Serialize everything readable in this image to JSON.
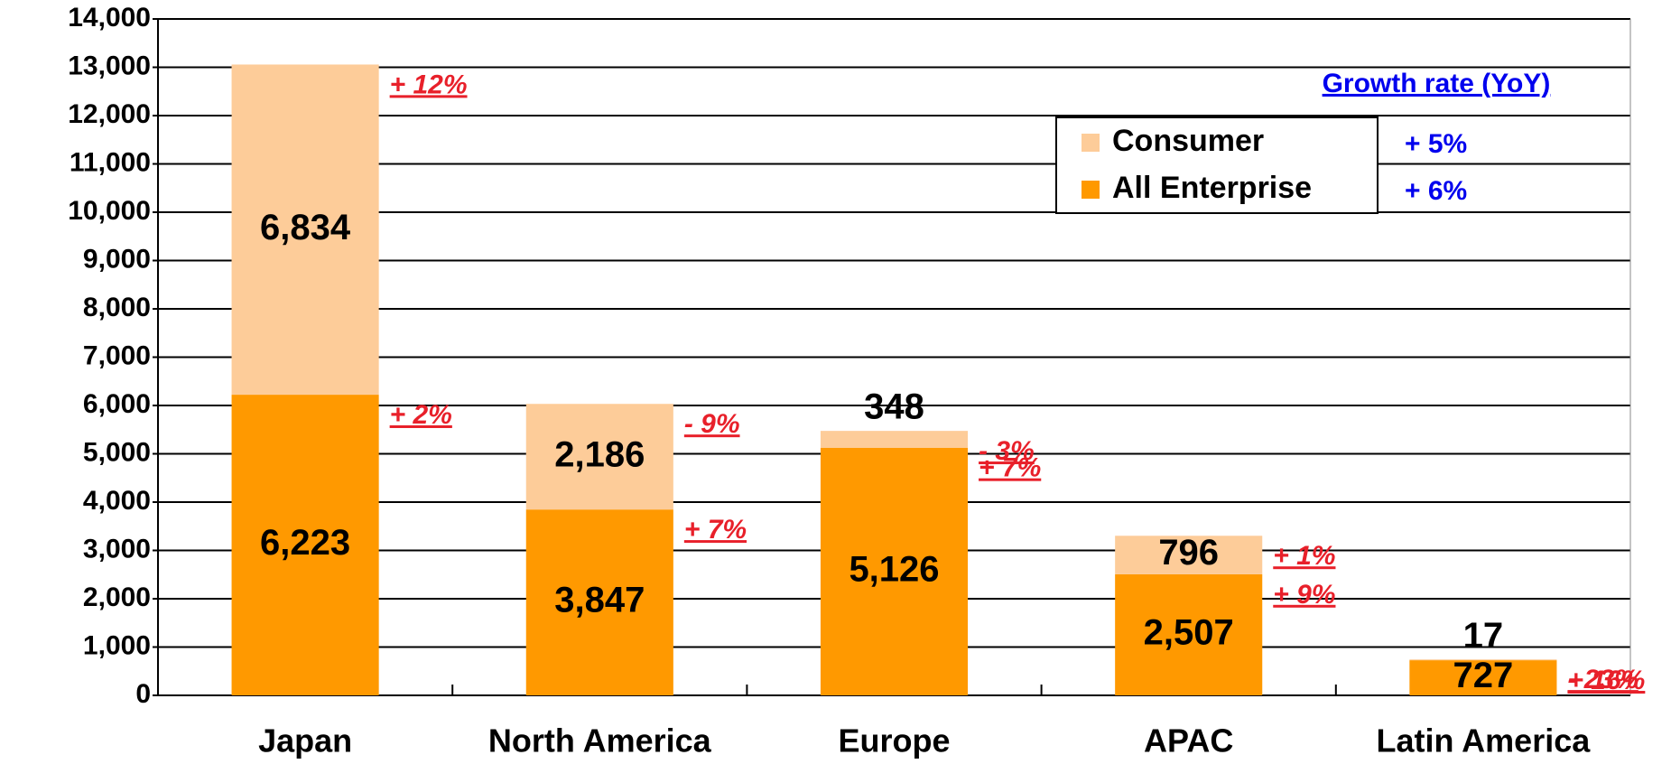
{
  "chart_data": {
    "type": "stacked_bar",
    "categories": [
      "Japan",
      "North America",
      "Europe",
      "APAC",
      "Latin America"
    ],
    "series": [
      {
        "name": "All Enterprise",
        "color": "#ff9900",
        "values": [
          6223,
          3847,
          5126,
          2507,
          727
        ],
        "value_labels": [
          "6,223",
          "3,847",
          "5,126",
          "2,507",
          "727"
        ],
        "growth_labels": [
          "+ 2%",
          "+ 7%",
          "+ 7%",
          "+ 9%",
          "+ 16%"
        ],
        "legend_growth": "+ 6%"
      },
      {
        "name": "Consumer",
        "color": "#fdcc99",
        "values": [
          6834,
          2186,
          348,
          796,
          17
        ],
        "value_labels": [
          "6,834",
          "2,186",
          "348",
          "796",
          "17"
        ],
        "growth_labels": [
          "+ 12%",
          "- 9%",
          "- 3%",
          "+ 1%",
          "- 23%"
        ],
        "legend_growth": "+ 5%"
      }
    ],
    "growth_title": "Growth rate (YoY)",
    "ylim": [
      0,
      14000
    ],
    "yticks": [
      0,
      {
        "value": 1000,
        "label": "1,000"
      },
      {
        "value": 2000,
        "label": "2,000"
      },
      {
        "value": 3000,
        "label": "3,000"
      },
      {
        "value": 4000,
        "label": "4,000"
      },
      {
        "value": 5000,
        "label": "5,000"
      },
      {
        "value": 6000,
        "label": "6,000"
      },
      {
        "value": 7000,
        "label": "7,000"
      },
      {
        "value": 8000,
        "label": "8,000"
      },
      {
        "value": 9000,
        "label": "9,000"
      },
      {
        "value": 10000,
        "label": "10,000"
      },
      {
        "value": 11000,
        "label": "11,000"
      },
      {
        "value": 12000,
        "label": "12,000"
      },
      {
        "value": 13000,
        "label": "13,000"
      },
      {
        "value": 14000,
        "label": "14,000"
      }
    ],
    "grid": true
  }
}
